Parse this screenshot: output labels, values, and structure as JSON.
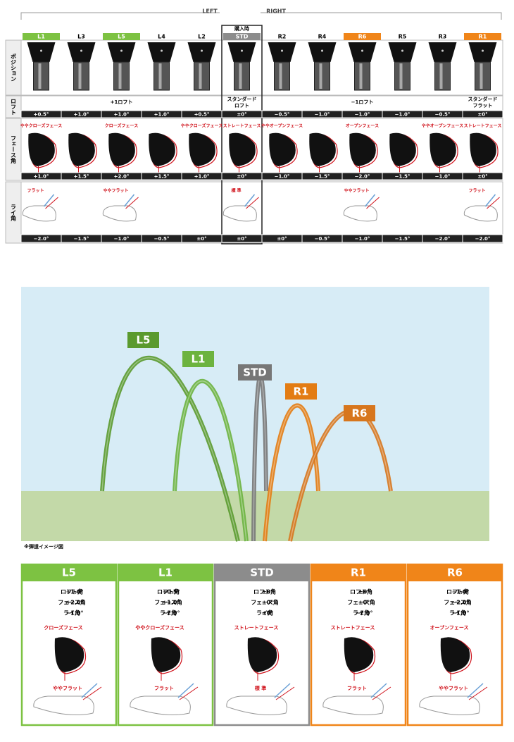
{
  "header": {
    "left": "LEFT",
    "right": "RIGHT",
    "purchase": "購入時"
  },
  "row_labels": [
    "ポジション",
    "ロフト",
    "フェース角",
    "ライ角"
  ],
  "positions": [
    {
      "name": "L1",
      "color": "#7dc242"
    },
    {
      "name": "L3",
      "color": null
    },
    {
      "name": "L5",
      "color": "#7dc242"
    },
    {
      "name": "L4",
      "color": null
    },
    {
      "name": "L2",
      "color": null
    },
    {
      "name": "STD",
      "color": "#8c8c8c"
    },
    {
      "name": "R2",
      "color": null
    },
    {
      "name": "R4",
      "color": null
    },
    {
      "name": "R6",
      "color": "#f08519"
    },
    {
      "name": "R5",
      "color": null
    },
    {
      "name": "R3",
      "color": null
    },
    {
      "name": "R1",
      "color": "#f08519"
    }
  ],
  "loft": {
    "notes": [
      null,
      null,
      [
        "+1ロフト"
      ],
      null,
      null,
      [
        "スタンダード",
        "ロフト"
      ],
      null,
      null,
      [
        "−1ロフト"
      ],
      null,
      null,
      [
        "スタンダード",
        "フラット"
      ]
    ],
    "values": [
      "+0.5°",
      "+1.0°",
      "+1.0°",
      "+1.0°",
      "+0.5°",
      "±0°",
      "−0.5°",
      "−1.0°",
      "−1.0°",
      "−1.0°",
      "−0.5°",
      "±0°"
    ]
  },
  "face": {
    "notes": [
      "ややクローズフェース",
      null,
      "クローズフェース",
      null,
      "ややクローズフェース",
      "ストレートフェース",
      "ややオープンフェース",
      null,
      "オープンフェース",
      null,
      "ややオープンフェース",
      "ストレートフェース"
    ],
    "values": [
      "+1.0°",
      "+1.5°",
      "+2.0°",
      "+1.5°",
      "+1.0°",
      "±0°",
      "−1.0°",
      "−1.5°",
      "−2.0°",
      "−1.5°",
      "−1.0°",
      "±0°"
    ]
  },
  "lie": {
    "notes": [
      "フラット",
      null,
      "ややフラット",
      null,
      null,
      "標 準",
      null,
      null,
      "ややフラット",
      null,
      null,
      "フラット"
    ],
    "values": [
      "−2.0°",
      "−1.5°",
      "−1.0°",
      "−0.5°",
      "±0°",
      "±0°",
      "±0°",
      "−0.5°",
      "−1.0°",
      "−1.5°",
      "−2.0°",
      "−2.0°"
    ]
  },
  "trajectory": {
    "labels": [
      "L5",
      "L1",
      "STD",
      "R1",
      "R6"
    ],
    "note": "※弾道イメージ図"
  },
  "cards": [
    {
      "name": "L5",
      "rows": [
        [
          "ロフト角",
          "+1.0°"
        ],
        [
          "フェース角",
          "+2.0°"
        ],
        [
          "ライ角",
          "−1.0°"
        ]
      ],
      "face": "クローズフェース",
      "lie": "ややフラット"
    },
    {
      "name": "L1",
      "rows": [
        [
          "ロフト角",
          "+0.5°"
        ],
        [
          "フェース角",
          "+1.0°"
        ],
        [
          "ライ角",
          "−2.0°"
        ]
      ],
      "face": "ややクローズフェース",
      "lie": "フラット"
    },
    {
      "name": "STD",
      "rows": [
        [
          "ロフト角",
          "±0°"
        ],
        [
          "フェース角",
          "±0°"
        ],
        [
          "ライ角",
          "±0°"
        ]
      ],
      "face": "ストレートフェース",
      "lie": "標 準"
    },
    {
      "name": "R1",
      "rows": [
        [
          "ロフト角",
          "±0°"
        ],
        [
          "フェース角",
          "±0°"
        ],
        [
          "ライ角",
          "−2.0°"
        ]
      ],
      "face": "ストレートフェース",
      "lie": "フラット"
    },
    {
      "name": "R6",
      "rows": [
        [
          "ロフト角",
          "−1.0°"
        ],
        [
          "フェース角",
          "−2.0°"
        ],
        [
          "ライ角",
          "−1.0°"
        ]
      ],
      "face": "オープンフェース",
      "lie": "ややフラット"
    }
  ]
}
